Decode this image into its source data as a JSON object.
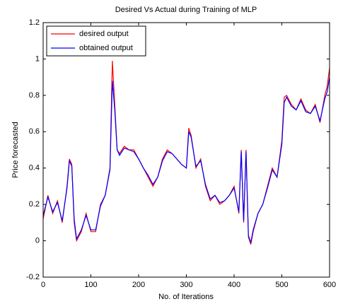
{
  "chart_data": {
    "type": "line",
    "title": "Desired Vs Actual during Training of MLP",
    "xlabel": "No. of Iterations",
    "ylabel": "Price forecasted",
    "x": [
      0,
      10,
      20,
      30,
      40,
      50,
      55,
      60,
      65,
      70,
      80,
      90,
      100,
      110,
      120,
      130,
      140,
      145,
      150,
      155,
      160,
      170,
      180,
      190,
      200,
      210,
      220,
      230,
      240,
      250,
      260,
      270,
      280,
      290,
      300,
      305,
      310,
      320,
      330,
      340,
      350,
      360,
      370,
      380,
      390,
      400,
      410,
      415,
      420,
      425,
      430,
      435,
      440,
      450,
      460,
      470,
      480,
      490,
      500,
      505,
      510,
      520,
      530,
      540,
      550,
      560,
      570,
      580,
      590,
      595,
      600
    ],
    "series": [
      {
        "name": "desired output",
        "color": "#ff0000",
        "values": [
          0.12,
          0.25,
          0.15,
          0.22,
          0.1,
          0.3,
          0.45,
          0.42,
          0.1,
          0.0,
          0.05,
          0.15,
          0.05,
          0.05,
          0.2,
          0.25,
          0.4,
          0.99,
          0.75,
          0.5,
          0.48,
          0.52,
          0.5,
          0.5,
          0.45,
          0.4,
          0.35,
          0.3,
          0.35,
          0.45,
          0.5,
          0.48,
          0.45,
          0.42,
          0.4,
          0.62,
          0.58,
          0.4,
          0.45,
          0.3,
          0.22,
          0.25,
          0.2,
          0.22,
          0.25,
          0.3,
          0.15,
          0.5,
          0.1,
          0.5,
          0.02,
          -0.02,
          0.05,
          0.15,
          0.2,
          0.3,
          0.4,
          0.35,
          0.55,
          0.79,
          0.8,
          0.75,
          0.72,
          0.78,
          0.72,
          0.7,
          0.75,
          0.65,
          0.8,
          0.85,
          0.95
        ]
      },
      {
        "name": "obtained output",
        "color": "#0000ff",
        "values": [
          0.14,
          0.24,
          0.16,
          0.21,
          0.11,
          0.29,
          0.44,
          0.41,
          0.12,
          0.01,
          0.06,
          0.14,
          0.06,
          0.06,
          0.19,
          0.25,
          0.39,
          0.88,
          0.72,
          0.5,
          0.47,
          0.51,
          0.5,
          0.49,
          0.45,
          0.4,
          0.36,
          0.31,
          0.35,
          0.44,
          0.49,
          0.48,
          0.45,
          0.42,
          0.4,
          0.6,
          0.57,
          0.41,
          0.44,
          0.31,
          0.23,
          0.25,
          0.21,
          0.22,
          0.25,
          0.29,
          0.16,
          0.49,
          0.11,
          0.49,
          0.03,
          -0.01,
          0.06,
          0.15,
          0.2,
          0.29,
          0.39,
          0.35,
          0.53,
          0.76,
          0.79,
          0.74,
          0.72,
          0.77,
          0.71,
          0.7,
          0.74,
          0.66,
          0.78,
          0.82,
          0.9
        ]
      }
    ],
    "xlim": [
      0,
      600
    ],
    "xticks": [
      0,
      100,
      200,
      300,
      400,
      500,
      600
    ],
    "ylim": [
      -0.2,
      1.2
    ],
    "yticks": [
      -0.2,
      0,
      0.2,
      0.4,
      0.6,
      0.8,
      1,
      1.2
    ],
    "legend": "upper left"
  }
}
